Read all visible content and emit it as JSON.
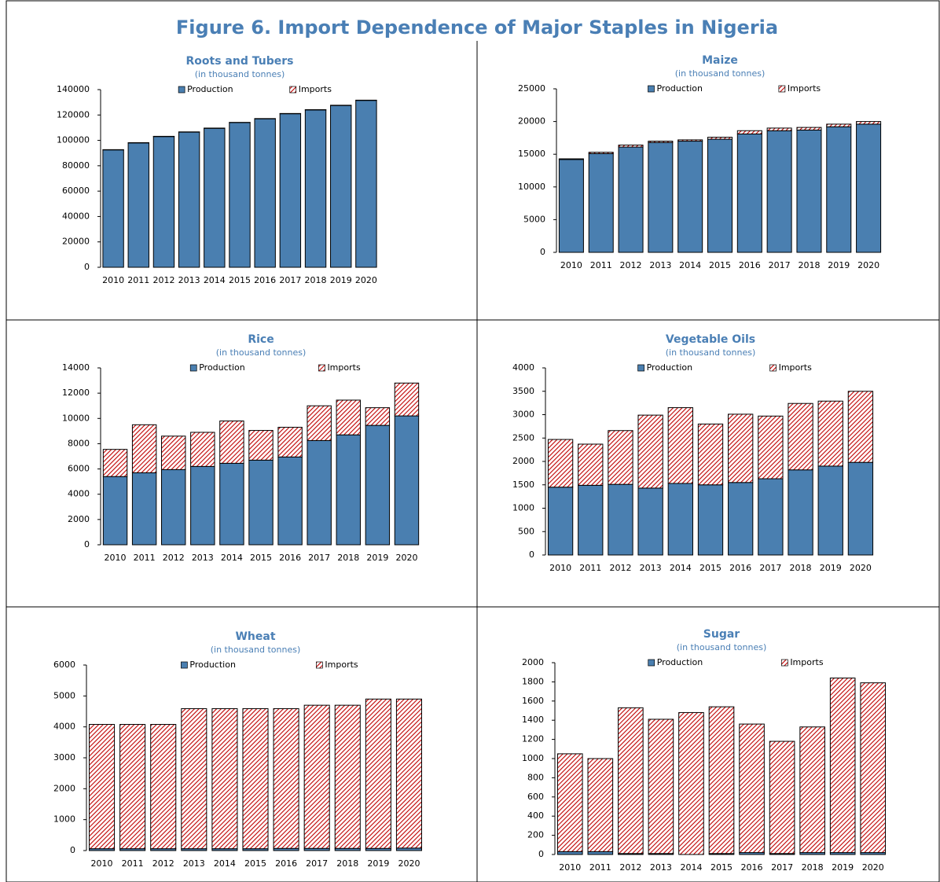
{
  "figure_title": "Figure 6. Import Dependence of Major Staples in Nigeria",
  "chart_data": [
    {
      "type": "stacked-bar",
      "title": "Roots and Tubers",
      "subtitle": "(in thousand tonnes)",
      "categories": [
        "2010",
        "2011",
        "2012",
        "2013",
        "2014",
        "2015",
        "2016",
        "2017",
        "2018",
        "2019",
        "2020"
      ],
      "series": [
        {
          "name": "Production",
          "color": "#4a7fb0",
          "values": [
            92500,
            98000,
            103000,
            106500,
            109500,
            114000,
            117000,
            121000,
            124000,
            127500,
            131500
          ]
        },
        {
          "name": "Imports",
          "color": "#c00000",
          "pattern": "diagonal-hatch",
          "values": [
            200,
            200,
            200,
            200,
            200,
            200,
            200,
            200,
            200,
            200,
            200
          ]
        }
      ],
      "ylim": [
        0,
        140000
      ],
      "yticks": [
        0,
        20000,
        40000,
        60000,
        80000,
        100000,
        120000,
        140000
      ]
    },
    {
      "type": "stacked-bar",
      "title": "Maize",
      "subtitle": "(in thousand tonnes)",
      "categories": [
        "2010",
        "2011",
        "2012",
        "2013",
        "2014",
        "2015",
        "2016",
        "2017",
        "2018",
        "2019",
        "2020"
      ],
      "series": [
        {
          "name": "Production",
          "color": "#4a7fb0",
          "values": [
            14200,
            15100,
            16100,
            16800,
            17000,
            17300,
            18100,
            18600,
            18700,
            19200,
            19600
          ]
        },
        {
          "name": "Imports",
          "color": "#c00000",
          "pattern": "diagonal-hatch",
          "values": [
            100,
            200,
            300,
            200,
            200,
            300,
            500,
            400,
            400,
            400,
            400
          ]
        }
      ],
      "ylim": [
        0,
        25000
      ],
      "yticks": [
        0,
        5000,
        10000,
        15000,
        20000,
        25000
      ]
    },
    {
      "type": "stacked-bar",
      "title": "Rice",
      "subtitle": "(in thousand tonnes)",
      "categories": [
        "2010",
        "2011",
        "2012",
        "2013",
        "2014",
        "2015",
        "2016",
        "2017",
        "2018",
        "2019",
        "2020"
      ],
      "series": [
        {
          "name": "Production",
          "color": "#4a7fb0",
          "values": [
            5400,
            5700,
            5950,
            6200,
            6450,
            6700,
            6950,
            8250,
            8700,
            9450,
            10200
          ]
        },
        {
          "name": "Imports",
          "color": "#c00000",
          "pattern": "diagonal-hatch",
          "values": [
            2150,
            3800,
            2650,
            2700,
            3350,
            2350,
            2350,
            2750,
            2750,
            1400,
            2600
          ]
        }
      ],
      "ylim": [
        0,
        14000
      ],
      "yticks": [
        0,
        2000,
        4000,
        6000,
        8000,
        10000,
        12000,
        14000
      ]
    },
    {
      "type": "stacked-bar",
      "title": "Vegetable Oils",
      "subtitle": "(in thousand tonnes)",
      "categories": [
        "2010",
        "2011",
        "2012",
        "2013",
        "2014",
        "2015",
        "2016",
        "2017",
        "2018",
        "2019",
        "2020"
      ],
      "series": [
        {
          "name": "Production",
          "color": "#4a7fb0",
          "values": [
            1450,
            1490,
            1510,
            1430,
            1530,
            1500,
            1550,
            1630,
            1820,
            1900,
            1980
          ]
        },
        {
          "name": "Imports",
          "color": "#c00000",
          "pattern": "diagonal-hatch",
          "values": [
            1020,
            880,
            1150,
            1560,
            1620,
            1300,
            1460,
            1340,
            1420,
            1390,
            1520
          ]
        }
      ],
      "ylim": [
        0,
        4000
      ],
      "yticks": [
        0,
        500,
        1000,
        1500,
        2000,
        2500,
        3000,
        3500,
        4000
      ]
    },
    {
      "type": "stacked-bar",
      "title": "Wheat",
      "subtitle": "(in thousand tonnes)",
      "categories": [
        "2010",
        "2011",
        "2012",
        "2013",
        "2014",
        "2015",
        "2016",
        "2017",
        "2018",
        "2019",
        "2020"
      ],
      "series": [
        {
          "name": "Production",
          "color": "#4a7fb0",
          "values": [
            60,
            60,
            60,
            60,
            60,
            60,
            70,
            70,
            70,
            70,
            80
          ]
        },
        {
          "name": "Imports",
          "color": "#c00000",
          "pattern": "diagonal-hatch",
          "values": [
            4020,
            4020,
            4020,
            4530,
            4530,
            4530,
            4520,
            4630,
            4630,
            4830,
            4820
          ]
        }
      ],
      "ylim": [
        0,
        6000
      ],
      "yticks": [
        0,
        1000,
        2000,
        3000,
        4000,
        5000,
        6000
      ]
    },
    {
      "type": "stacked-bar",
      "title": "Sugar",
      "subtitle": "(in thousand tonnes)",
      "categories": [
        "2010",
        "2011",
        "2012",
        "2013",
        "2014",
        "2015",
        "2016",
        "2017",
        "2018",
        "2019",
        "2020"
      ],
      "series": [
        {
          "name": "Production",
          "color": "#4a7fb0",
          "values": [
            30,
            30,
            10,
            10,
            0,
            10,
            20,
            10,
            20,
            20,
            20
          ]
        },
        {
          "name": "Imports",
          "color": "#c00000",
          "pattern": "diagonal-hatch",
          "values": [
            1020,
            970,
            1520,
            1400,
            1480,
            1530,
            1340,
            1170,
            1310,
            1820,
            1770
          ]
        }
      ],
      "ylim": [
        0,
        2000
      ],
      "yticks": [
        0,
        200,
        400,
        600,
        800,
        1000,
        1200,
        1400,
        1600,
        1800,
        2000
      ]
    }
  ]
}
